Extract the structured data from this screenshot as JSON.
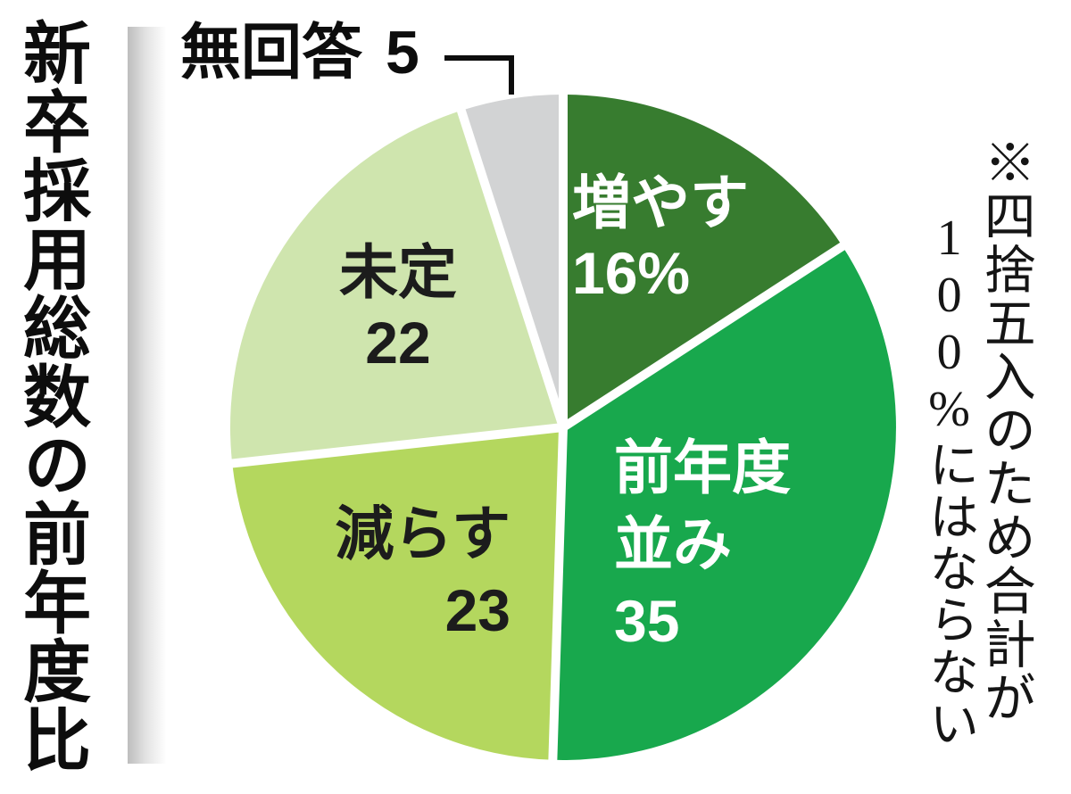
{
  "title": {
    "text": "新卒採用総数の前年度比"
  },
  "callout": {
    "label": "無回答",
    "value": "5"
  },
  "note": {
    "full": "※四捨五入のため合計が100%にはならない",
    "columns": [
      "※四捨五入のため合計が",
      "100%にはならない"
    ]
  },
  "chart_data": {
    "type": "pie",
    "title": "新卒採用総数の前年度比",
    "unit": "%",
    "start_angle_deg": 0,
    "direction": "clockwise",
    "legend_position": "labels-on-slices",
    "separator_color": "#ffffff",
    "slices": [
      {
        "name": "増やす",
        "value": 16,
        "display": "16%",
        "color": "#377c2f",
        "label_color": "#ffffff",
        "label_lines": [
          "増やす",
          "16%"
        ]
      },
      {
        "name": "前年度並み",
        "value": 35,
        "display": "35",
        "color": "#18a84d",
        "label_color": "#ffffff",
        "label_lines": [
          "前年度",
          "並み",
          "35"
        ]
      },
      {
        "name": "減らす",
        "value": 23,
        "display": "23",
        "color": "#b4d75e",
        "label_color": "#1c1c1c",
        "label_lines": [
          "減らす",
          "23"
        ]
      },
      {
        "name": "未定",
        "value": 22,
        "display": "22",
        "color": "#cfe5ae",
        "label_color": "#1c1c1c",
        "label_lines": [
          "未定",
          "22"
        ]
      },
      {
        "name": "無回答",
        "value": 5,
        "display": "5",
        "color": "#d2d3d4",
        "label_color": "#1c1c1c",
        "label_lines": []
      }
    ]
  }
}
